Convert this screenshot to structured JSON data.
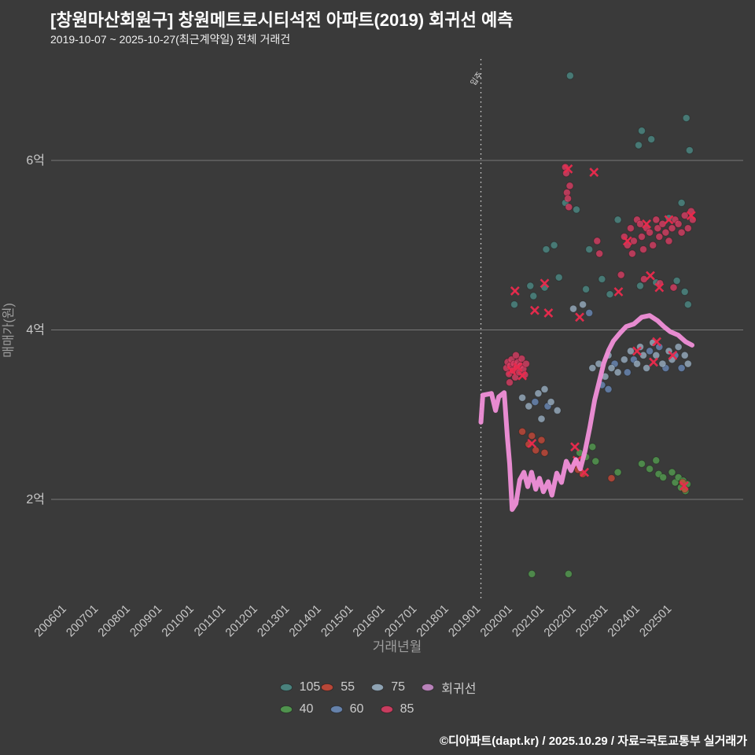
{
  "title": "[창원마산회원구] 창원메트로시티석전 아파트(2019) 회귀선 예측",
  "subtitle": "2019-10-07 ~ 2025-10-27(최근계약일) 전체 거래건",
  "footer": "©디아파트(dapt.kr) / 2025.10.29 / 자료=국토교통부 실거래가",
  "colors": {
    "background": "#3a3a3a",
    "grid": "#787878",
    "axis_text": "#c8c8c8",
    "axis_title": "#9e9e9e",
    "vline": "#d8d8d8",
    "x_marker": "#ea2a4d",
    "regression": "#f08fd8"
  },
  "chart_data": {
    "type": "scatter",
    "title": "[창원마산회원구] 창원메트로시티석전 아파트(2019) 회귀선 예측",
    "xlabel": "거래년월",
    "ylabel": "매매가(원)",
    "x_ticks": [
      "200601",
      "200701",
      "200801",
      "200901",
      "201001",
      "201101",
      "201201",
      "201301",
      "201401",
      "201501",
      "201601",
      "201701",
      "201801",
      "201901",
      "202001",
      "202101",
      "202201",
      "202301",
      "202401",
      "202501"
    ],
    "y_gridlines": [
      {
        "label": "2억",
        "value": 2
      },
      {
        "label": "4억",
        "value": 4
      },
      {
        "label": "6억",
        "value": 6
      }
    ],
    "ylim": [
      0.8,
      7.2
    ],
    "legend_position": "bottom",
    "annotation": {
      "label": "입주",
      "x": 2019.0
    },
    "series": [
      {
        "name": "105",
        "color": "#4e8f8a",
        "points": [
          [
            2021.8,
            7.0
          ],
          [
            2025.45,
            6.5
          ],
          [
            2025.55,
            6.12
          ],
          [
            2024.05,
            6.35
          ],
          [
            2024.35,
            6.25
          ],
          [
            2023.95,
            6.18
          ],
          [
            2021.05,
            4.95
          ],
          [
            2021.3,
            5.0
          ],
          [
            2021.65,
            5.5
          ],
          [
            2022.0,
            5.42
          ],
          [
            2023.3,
            5.3
          ],
          [
            2024.9,
            5.32
          ],
          [
            2025.3,
            5.5
          ],
          [
            2020.55,
            4.52
          ],
          [
            2020.65,
            4.4
          ],
          [
            2021.0,
            4.5
          ],
          [
            2021.45,
            4.62
          ],
          [
            2022.3,
            4.48
          ],
          [
            2022.8,
            4.6
          ],
          [
            2023.05,
            4.42
          ],
          [
            2024.0,
            4.52
          ],
          [
            2024.5,
            4.56
          ],
          [
            2025.15,
            4.58
          ],
          [
            2025.4,
            4.45
          ],
          [
            2025.5,
            4.3
          ],
          [
            2020.05,
            4.3
          ],
          [
            2022.4,
            4.95
          ]
        ]
      },
      {
        "name": "40",
        "color": "#55a352",
        "points": [
          [
            2022.1,
            2.55
          ],
          [
            2022.3,
            2.5
          ],
          [
            2022.5,
            2.62
          ],
          [
            2022.6,
            2.45
          ],
          [
            2023.3,
            2.32
          ],
          [
            2024.05,
            2.42
          ],
          [
            2024.3,
            2.36
          ],
          [
            2024.5,
            2.46
          ],
          [
            2024.58,
            2.3
          ],
          [
            2024.72,
            2.26
          ],
          [
            2025.0,
            2.32
          ],
          [
            2025.1,
            2.2
          ],
          [
            2025.2,
            2.26
          ],
          [
            2025.28,
            2.14
          ],
          [
            2025.35,
            2.22
          ],
          [
            2025.42,
            2.1
          ],
          [
            2025.48,
            2.18
          ],
          [
            2020.6,
            1.12
          ],
          [
            2021.75,
            1.12
          ]
        ]
      },
      {
        "name": "55",
        "color": "#cf4a38",
        "points": [
          [
            2020.3,
            2.8
          ],
          [
            2020.5,
            2.65
          ],
          [
            2020.6,
            2.75
          ],
          [
            2020.72,
            2.58
          ],
          [
            2020.9,
            2.7
          ],
          [
            2021.0,
            2.55
          ],
          [
            2021.95,
            2.42
          ],
          [
            2022.05,
            2.35
          ],
          [
            2022.2,
            2.3
          ],
          [
            2025.33,
            2.2
          ],
          [
            2025.4,
            2.12
          ],
          [
            2023.1,
            2.25
          ]
        ]
      },
      {
        "name": "60",
        "color": "#6e8fc0",
        "points": [
          [
            2023.2,
            3.6
          ],
          [
            2023.6,
            3.5
          ],
          [
            2023.8,
            3.65
          ],
          [
            2024.3,
            3.75
          ],
          [
            2024.6,
            3.8
          ],
          [
            2024.8,
            3.55
          ],
          [
            2025.1,
            3.7
          ],
          [
            2025.3,
            3.55
          ],
          [
            2022.8,
            3.35
          ],
          [
            2023.0,
            3.3
          ],
          [
            2020.7,
            3.15
          ],
          [
            2021.1,
            3.1
          ],
          [
            2022.4,
            4.2
          ]
        ]
      },
      {
        "name": "75",
        "color": "#9fb6c9",
        "points": [
          [
            2022.5,
            3.55
          ],
          [
            2022.7,
            3.6
          ],
          [
            2022.9,
            3.45
          ],
          [
            2023.0,
            3.7
          ],
          [
            2023.1,
            3.55
          ],
          [
            2023.3,
            3.5
          ],
          [
            2023.5,
            3.65
          ],
          [
            2023.7,
            3.75
          ],
          [
            2023.9,
            3.6
          ],
          [
            2024.0,
            3.8
          ],
          [
            2024.1,
            3.7
          ],
          [
            2024.2,
            3.55
          ],
          [
            2024.4,
            3.85
          ],
          [
            2024.5,
            3.7
          ],
          [
            2024.7,
            3.6
          ],
          [
            2024.9,
            3.75
          ],
          [
            2025.0,
            3.65
          ],
          [
            2025.2,
            3.8
          ],
          [
            2025.4,
            3.7
          ],
          [
            2025.5,
            3.6
          ],
          [
            2020.3,
            3.2
          ],
          [
            2020.5,
            3.1
          ],
          [
            2020.8,
            3.25
          ],
          [
            2021.0,
            3.3
          ],
          [
            2021.2,
            3.15
          ],
          [
            2021.4,
            3.05
          ],
          [
            2020.9,
            2.95
          ],
          [
            2021.9,
            4.25
          ],
          [
            2022.2,
            4.3
          ]
        ]
      },
      {
        "name": "85",
        "color": "#e23e66",
        "points": [
          [
            2019.8,
            3.55
          ],
          [
            2019.84,
            3.62
          ],
          [
            2019.88,
            3.48
          ],
          [
            2019.92,
            3.58
          ],
          [
            2019.96,
            3.65
          ],
          [
            2020.0,
            3.52
          ],
          [
            2020.04,
            3.6
          ],
          [
            2020.08,
            3.44
          ],
          [
            2020.12,
            3.56
          ],
          [
            2020.16,
            3.62
          ],
          [
            2020.2,
            3.5
          ],
          [
            2020.24,
            3.58
          ],
          [
            2020.28,
            3.66
          ],
          [
            2020.33,
            3.54
          ],
          [
            2020.38,
            3.47
          ],
          [
            2020.42,
            3.6
          ],
          [
            2019.9,
            3.38
          ],
          [
            2020.1,
            3.7
          ],
          [
            2021.65,
            5.92
          ],
          [
            2021.68,
            5.85
          ],
          [
            2021.7,
            5.62
          ],
          [
            2021.73,
            5.55
          ],
          [
            2021.76,
            5.45
          ],
          [
            2021.79,
            5.7
          ],
          [
            2023.5,
            5.1
          ],
          [
            2023.6,
            5.0
          ],
          [
            2023.7,
            5.2
          ],
          [
            2023.75,
            4.9
          ],
          [
            2023.8,
            5.05
          ],
          [
            2023.9,
            5.3
          ],
          [
            2024.0,
            5.25
          ],
          [
            2024.05,
            5.1
          ],
          [
            2024.1,
            4.95
          ],
          [
            2024.2,
            5.2
          ],
          [
            2024.3,
            5.15
          ],
          [
            2024.4,
            5.0
          ],
          [
            2024.5,
            5.3
          ],
          [
            2024.55,
            5.2
          ],
          [
            2024.6,
            5.1
          ],
          [
            2024.7,
            5.25
          ],
          [
            2024.8,
            5.15
          ],
          [
            2024.9,
            5.05
          ],
          [
            2025.0,
            5.2
          ],
          [
            2025.1,
            5.3
          ],
          [
            2025.2,
            5.25
          ],
          [
            2025.3,
            5.15
          ],
          [
            2025.4,
            5.35
          ],
          [
            2025.5,
            5.2
          ],
          [
            2025.6,
            5.4
          ],
          [
            2025.65,
            5.3
          ],
          [
            2023.4,
            4.65
          ],
          [
            2024.12,
            4.6
          ],
          [
            2024.62,
            4.55
          ],
          [
            2025.05,
            4.5
          ],
          [
            2022.72,
            4.9
          ],
          [
            2022.65,
            5.05
          ]
        ]
      }
    ],
    "x_markers": {
      "name": "cancelled-x",
      "color": "#ea2a4d",
      "points": [
        [
          2019.96,
          3.52
        ],
        [
          2020.16,
          3.56
        ],
        [
          2020.3,
          3.46
        ],
        [
          2020.07,
          4.46
        ],
        [
          2020.69,
          4.23
        ],
        [
          2021.0,
          4.55
        ],
        [
          2021.12,
          4.2
        ],
        [
          2022.1,
          4.15
        ],
        [
          2021.74,
          5.9
        ],
        [
          2022.55,
          5.86
        ],
        [
          2022.02,
          2.46
        ],
        [
          2022.25,
          2.32
        ],
        [
          2023.6,
          5.05
        ],
        [
          2024.2,
          5.25
        ],
        [
          2024.9,
          5.3
        ],
        [
          2025.6,
          5.35
        ],
        [
          2023.32,
          4.45
        ],
        [
          2024.32,
          4.64
        ],
        [
          2023.9,
          3.75
        ],
        [
          2024.42,
          3.62
        ],
        [
          2024.52,
          3.86
        ],
        [
          2025.02,
          3.7
        ],
        [
          2025.38,
          2.16
        ],
        [
          2024.6,
          4.5
        ],
        [
          2020.6,
          2.66
        ],
        [
          2021.95,
          2.62
        ]
      ]
    },
    "regression": {
      "name": "회귀선",
      "color": "#f08fd8",
      "points": [
        [
          2019.0,
          2.91
        ],
        [
          2019.06,
          3.23
        ],
        [
          2019.33,
          3.25
        ],
        [
          2019.46,
          3.05
        ],
        [
          2019.56,
          3.21
        ],
        [
          2019.73,
          3.26
        ],
        [
          2019.83,
          2.74
        ],
        [
          2019.9,
          2.42
        ],
        [
          2019.98,
          1.88
        ],
        [
          2020.1,
          1.95
        ],
        [
          2020.22,
          2.23
        ],
        [
          2020.35,
          2.32
        ],
        [
          2020.47,
          2.15
        ],
        [
          2020.59,
          2.32
        ],
        [
          2020.72,
          2.12
        ],
        [
          2020.84,
          2.25
        ],
        [
          2020.96,
          2.09
        ],
        [
          2021.11,
          2.21
        ],
        [
          2021.23,
          2.05
        ],
        [
          2021.38,
          2.31
        ],
        [
          2021.53,
          2.2
        ],
        [
          2021.68,
          2.45
        ],
        [
          2021.83,
          2.34
        ],
        [
          2021.98,
          2.47
        ],
        [
          2022.12,
          2.36
        ],
        [
          2022.27,
          2.57
        ],
        [
          2022.42,
          2.85
        ],
        [
          2022.57,
          3.17
        ],
        [
          2022.72,
          3.4
        ],
        [
          2022.86,
          3.61
        ],
        [
          2023.01,
          3.76
        ],
        [
          2023.16,
          3.87
        ],
        [
          2023.36,
          3.96
        ],
        [
          2023.56,
          4.04
        ],
        [
          2023.8,
          4.07
        ],
        [
          2024.05,
          4.15
        ],
        [
          2024.3,
          4.17
        ],
        [
          2024.54,
          4.11
        ],
        [
          2024.74,
          4.04
        ],
        [
          2024.94,
          3.98
        ],
        [
          2025.19,
          3.94
        ],
        [
          2025.43,
          3.86
        ],
        [
          2025.63,
          3.82
        ]
      ]
    }
  },
  "legend": {
    "rows": [
      [
        {
          "label": "105",
          "color": "#4e8f8a"
        },
        {
          "label": "55",
          "color": "#cf4a38"
        },
        {
          "label": "75",
          "color": "#9fb6c9"
        },
        {
          "label": "회귀선",
          "color": "#cf8fd0"
        }
      ],
      [
        {
          "label": "40",
          "color": "#55a352"
        },
        {
          "label": "60",
          "color": "#6e8fc0"
        },
        {
          "label": "85",
          "color": "#e23e66"
        }
      ]
    ]
  }
}
